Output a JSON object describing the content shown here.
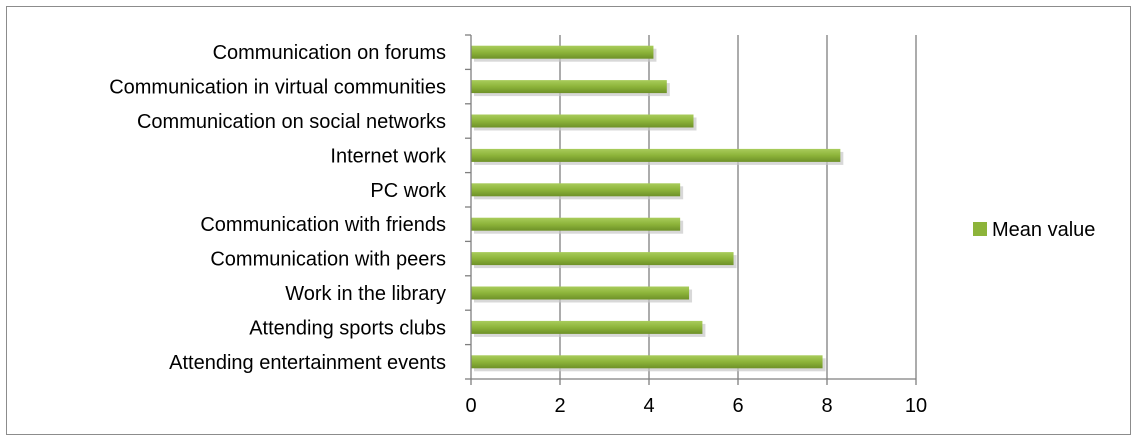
{
  "chart_data": {
    "type": "bar",
    "orientation": "horizontal",
    "categories": [
      "Communication on forums",
      "Communication in virtual communities",
      "Communication on social networks",
      "Internet work",
      "PC work",
      "Communication with friends",
      "Communication with peers",
      "Work in the library",
      "Attending sports clubs",
      "Attending entertainment events"
    ],
    "series": [
      {
        "name": "Mean value",
        "color": "#8DB43A",
        "values": [
          4.1,
          4.4,
          5.0,
          8.3,
          4.7,
          4.7,
          5.9,
          4.9,
          5.2,
          7.9
        ]
      }
    ],
    "xlim": [
      0,
      10
    ],
    "xticks": [
      "0",
      "2",
      "4",
      "6",
      "8",
      "10"
    ],
    "grid": true,
    "legend_position": "right"
  }
}
